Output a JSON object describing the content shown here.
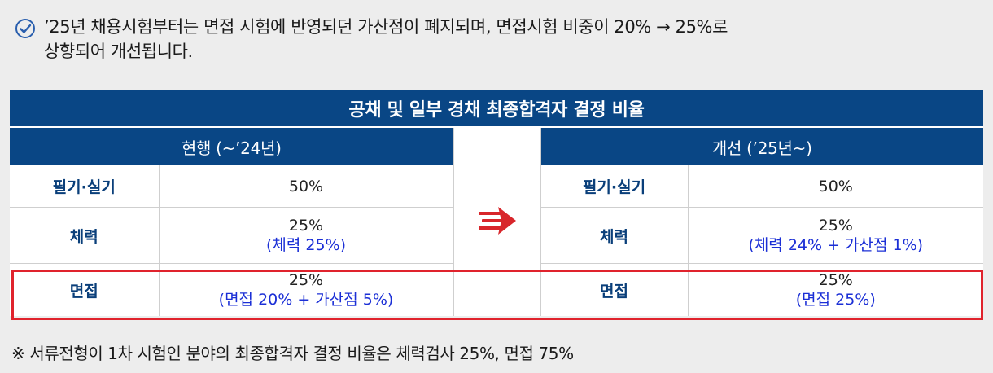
{
  "intro": {
    "line1": "’25년 채용시험부터는 면접 시험에 반영되던 가산점이 폐지되며, 면접시험 비중이 20% → 25%로",
    "line2": "상향되어 개선됩니다."
  },
  "table": {
    "title": "공채 및 일부 경채 최종합격자 결정 비율",
    "left_header": "현행 (~’24년)",
    "right_header": "개선 (’25년~)",
    "rows": [
      {
        "label": "필기·실기",
        "current_main": "50%",
        "current_sub": "",
        "new_main": "50%",
        "new_sub": ""
      },
      {
        "label": "체력",
        "current_main": "25%",
        "current_sub": "(체력 25%)",
        "new_main": "25%",
        "new_sub": "(체력 24% + 가산점 1%)"
      },
      {
        "label": "면접",
        "current_main": "25%",
        "current_sub": "(면접 20% + 가산점 5%)",
        "new_main": "25%",
        "new_sub": "(면접 25%)"
      }
    ],
    "arrow_icon": "right-arrow-icon",
    "highlight_color": "#e0232d",
    "header_color": "#094685"
  },
  "footnote": "※ 서류전형이 1차 시험인 분야의 최종합격자 결정 비율은 체력검사 25%, 면접 75%"
}
